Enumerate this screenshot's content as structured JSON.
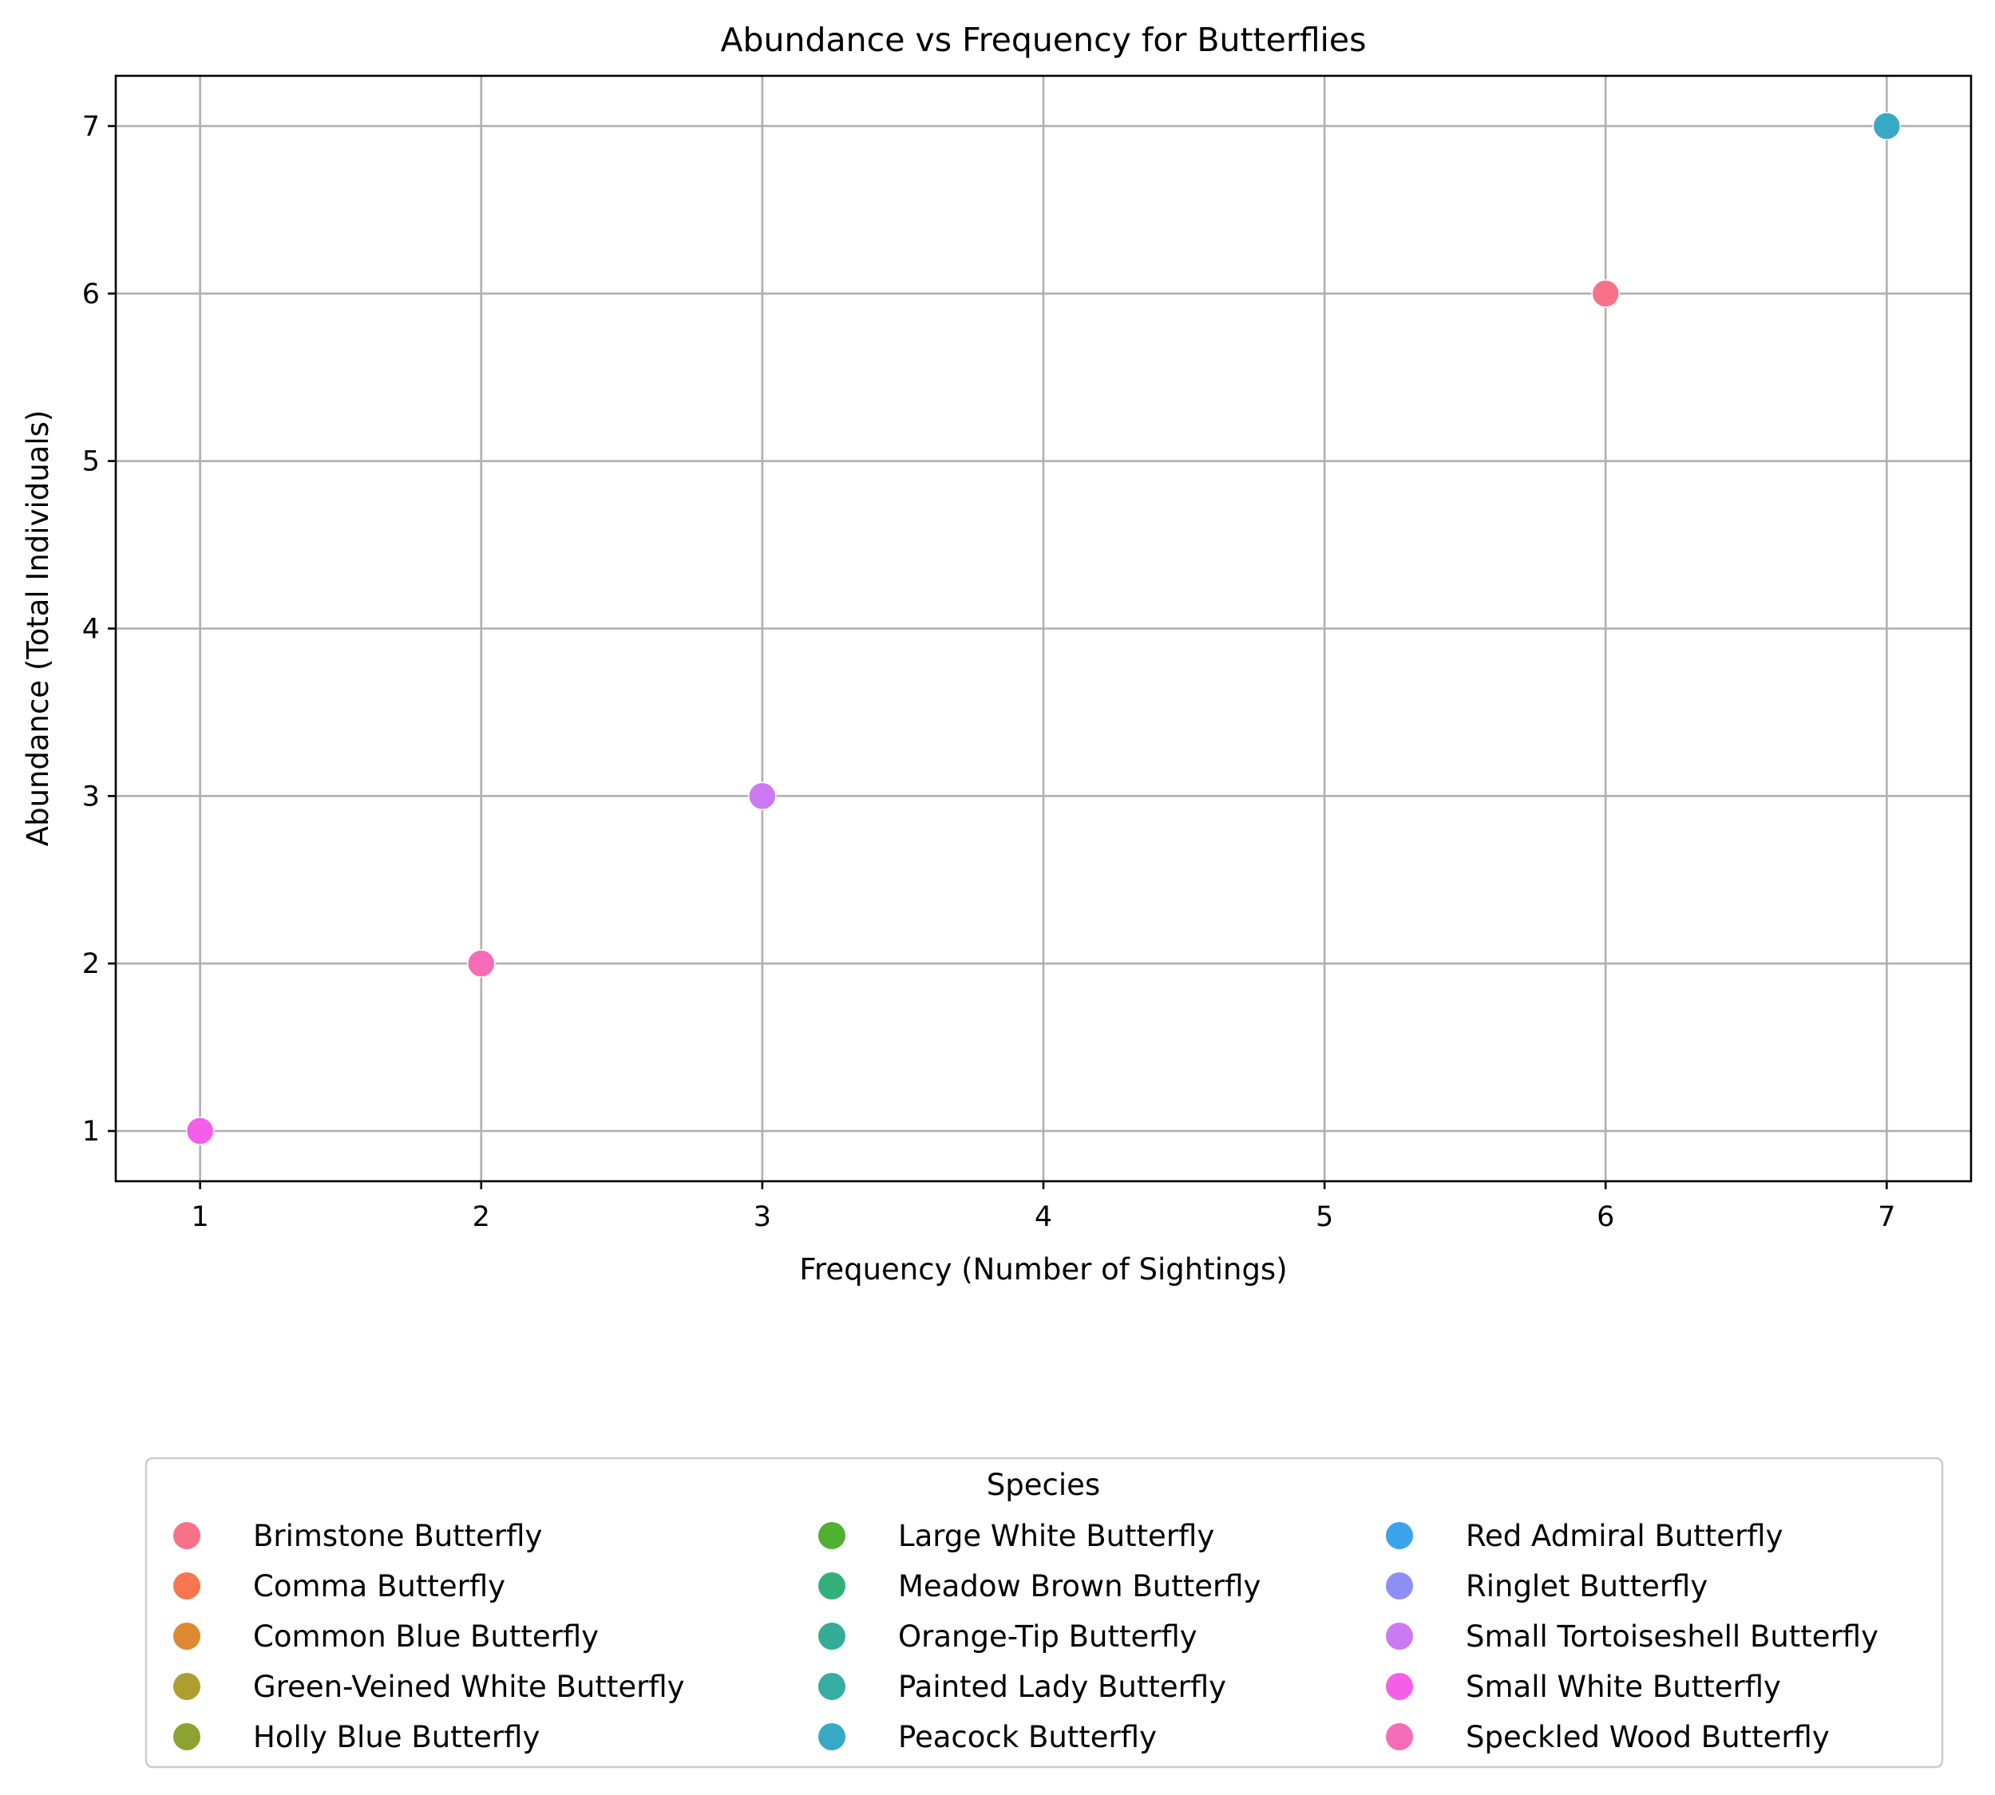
{
  "chart_data": {
    "type": "scatter",
    "title": "Abundance vs Frequency for Butterflies",
    "xlabel": "Frequency (Number of Sightings)",
    "ylabel": "Abundance (Total Individuals)",
    "xlim": [
      0.7,
      7.3
    ],
    "ylim": [
      0.7,
      7.3
    ],
    "xticks": [
      1,
      2,
      3,
      4,
      5,
      6,
      7
    ],
    "yticks": [
      1,
      2,
      3,
      4,
      5,
      6,
      7
    ],
    "grid": true,
    "legend": {
      "title": "Species",
      "placement": "bottom-center",
      "columns": 3
    },
    "series": [
      {
        "name": "Brimstone Butterfly",
        "color": "#f77189",
        "points": [
          [
            6,
            6
          ]
        ]
      },
      {
        "name": "Comma Butterfly",
        "color": "#f7754f",
        "points": []
      },
      {
        "name": "Common Blue Butterfly",
        "color": "#dc8932",
        "points": []
      },
      {
        "name": "Green-Veined White Butterfly",
        "color": "#ae9d31",
        "points": []
      },
      {
        "name": "Holly Blue Butterfly",
        "color": "#8ca331",
        "points": []
      },
      {
        "name": "Large White Butterfly",
        "color": "#50b131",
        "points": []
      },
      {
        "name": "Meadow Brown Butterfly",
        "color": "#33b07a",
        "points": []
      },
      {
        "name": "Orange-Tip Butterfly",
        "color": "#35ac97",
        "points": []
      },
      {
        "name": "Painted Lady Butterfly",
        "color": "#36ada4",
        "points": []
      },
      {
        "name": "Peacock Butterfly",
        "color": "#38a9c5",
        "points": [
          [
            7,
            7
          ]
        ]
      },
      {
        "name": "Red Admiral Butterfly",
        "color": "#3ba3ec",
        "points": []
      },
      {
        "name": "Ringlet Butterfly",
        "color": "#8e8ff5",
        "points": []
      },
      {
        "name": "Small Tortoiseshell Butterfly",
        "color": "#cc7af4",
        "points": [
          [
            3,
            3
          ]
        ]
      },
      {
        "name": "Small White Butterfly",
        "color": "#f45ee8",
        "points": [
          [
            1,
            1
          ]
        ]
      },
      {
        "name": "Speckled Wood Butterfly",
        "color": "#f56cb8",
        "points": [
          [
            2,
            2
          ]
        ]
      }
    ]
  }
}
